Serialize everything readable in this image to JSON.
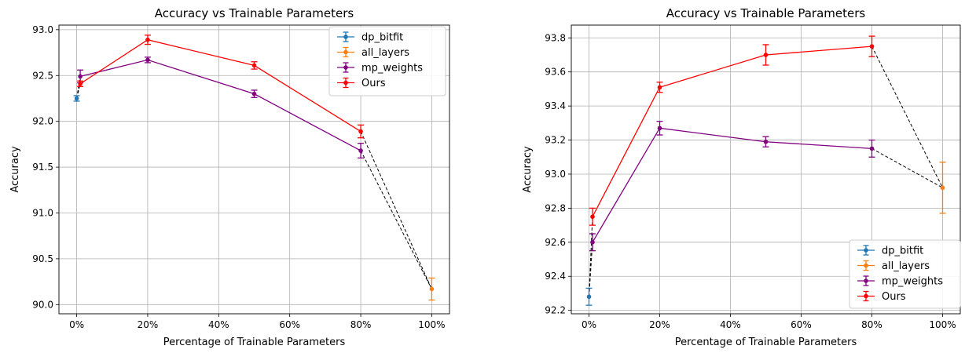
{
  "chart_data": [
    {
      "type": "line",
      "title": "Accuracy vs Trainable Parameters",
      "xlabel": "Percentage of Trainable Parameters",
      "ylabel": "Accuracy",
      "xlim": [
        -5,
        105
      ],
      "ylim": [
        89.9,
        93.05
      ],
      "xticks": [
        0,
        20,
        40,
        60,
        80,
        100
      ],
      "xtick_labels": [
        "0%",
        "20%",
        "40%",
        "60%",
        "80%",
        "100%"
      ],
      "yticks": [
        90.0,
        90.5,
        91.0,
        91.5,
        92.0,
        92.5,
        93.0
      ],
      "ytick_labels": [
        "90.0",
        "90.5",
        "91.0",
        "91.5",
        "92.0",
        "92.5",
        "93.0"
      ],
      "grid": true,
      "legend_position": "top-right",
      "series": [
        {
          "name": "dp_bitfit",
          "color": "#1f77b4",
          "x": [
            0
          ],
          "y": [
            92.25
          ],
          "err": [
            0.03
          ],
          "connect": false
        },
        {
          "name": "all_layers",
          "color": "#ff7f0e",
          "x": [
            100
          ],
          "y": [
            90.17
          ],
          "err": [
            0.12
          ],
          "connect": false
        },
        {
          "name": "mp_weights",
          "color": "#800080",
          "x": [
            1,
            20,
            50,
            80
          ],
          "y": [
            92.49,
            92.67,
            92.3,
            91.68
          ],
          "err": [
            0.07,
            0.03,
            0.04,
            0.08
          ],
          "connect": true
        },
        {
          "name": "Ours",
          "color": "#ff0000",
          "x": [
            1,
            20,
            50,
            80
          ],
          "y": [
            92.41,
            92.89,
            92.61,
            91.89
          ],
          "err": [
            0.03,
            0.05,
            0.04,
            0.07
          ],
          "connect": true
        }
      ],
      "dashed_connectors": [
        {
          "from": [
            0,
            92.25
          ],
          "to": [
            1,
            92.49
          ]
        },
        {
          "from": [
            0,
            92.25
          ],
          "to": [
            1,
            92.41
          ]
        },
        {
          "from": [
            80,
            91.68
          ],
          "to": [
            100,
            90.17
          ]
        },
        {
          "from": [
            80,
            91.89
          ],
          "to": [
            100,
            90.17
          ]
        }
      ]
    },
    {
      "type": "line",
      "title": "Accuracy vs Trainable Parameters",
      "xlabel": "Percentage of Trainable Parameters",
      "ylabel": "Accuracy",
      "xlim": [
        -5,
        105
      ],
      "ylim": [
        92.18,
        93.875
      ],
      "xticks": [
        0,
        20,
        40,
        60,
        80,
        100
      ],
      "xtick_labels": [
        "0%",
        "20%",
        "40%",
        "60%",
        "80%",
        "100%"
      ],
      "yticks": [
        92.2,
        92.4,
        92.6,
        92.8,
        93.0,
        93.2,
        93.4,
        93.6,
        93.8
      ],
      "ytick_labels": [
        "92.2",
        "92.4",
        "92.6",
        "92.8",
        "93.0",
        "93.2",
        "93.4",
        "93.6",
        "93.8"
      ],
      "grid": true,
      "legend_position": "bottom-right",
      "series": [
        {
          "name": "dp_bitfit",
          "color": "#1f77b4",
          "x": [
            0
          ],
          "y": [
            92.28
          ],
          "err": [
            0.05
          ],
          "connect": false
        },
        {
          "name": "all_layers",
          "color": "#ff7f0e",
          "x": [
            100
          ],
          "y": [
            92.92
          ],
          "err": [
            0.15
          ],
          "connect": false
        },
        {
          "name": "mp_weights",
          "color": "#800080",
          "x": [
            1,
            20,
            50,
            80
          ],
          "y": [
            92.6,
            93.27,
            93.19,
            93.15
          ],
          "err": [
            0.05,
            0.04,
            0.03,
            0.05
          ],
          "connect": true
        },
        {
          "name": "Ours",
          "color": "#ff0000",
          "x": [
            1,
            20,
            50,
            80
          ],
          "y": [
            92.75,
            93.51,
            93.7,
            93.75
          ],
          "err": [
            0.05,
            0.03,
            0.06,
            0.06
          ],
          "connect": true
        }
      ],
      "dashed_connectors": [
        {
          "from": [
            0,
            92.28
          ],
          "to": [
            1,
            92.6
          ]
        },
        {
          "from": [
            0,
            92.28
          ],
          "to": [
            1,
            92.75
          ]
        },
        {
          "from": [
            80,
            93.15
          ],
          "to": [
            100,
            92.92
          ]
        },
        {
          "from": [
            80,
            93.75
          ],
          "to": [
            100,
            92.92
          ]
        }
      ]
    }
  ]
}
